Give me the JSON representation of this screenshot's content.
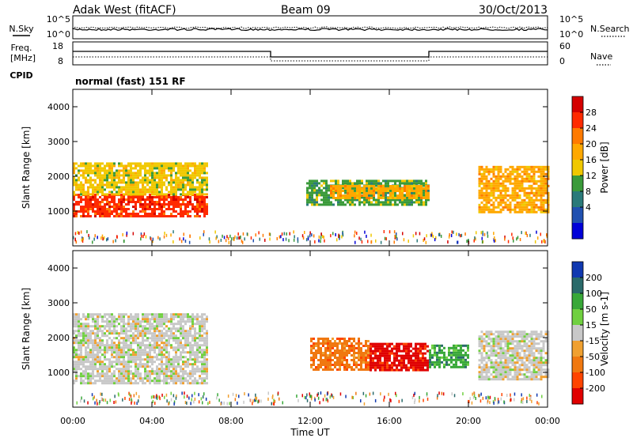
{
  "header": {
    "radar": "Adak West (fitACF)",
    "beam": "Beam 09",
    "date": "30/Oct/2013"
  },
  "noise_panel": {
    "left_label": "N.Sky",
    "right_label": "N.Search",
    "left_ticks": [
      "10^5",
      "10^0"
    ],
    "right_ticks": [
      "10^5",
      "10^0"
    ]
  },
  "freq_panel": {
    "left_label_line1": "Freq.",
    "left_label_line2": "[MHz]",
    "cpid_label": "CPID",
    "right_label": "Nave",
    "left_ticks": [
      "18",
      "8"
    ],
    "right_ticks": [
      "60",
      "0"
    ],
    "cpid_text": "normal (fast) 151 RF"
  },
  "legend_power": {
    "label": "Power [dB]",
    "ticks": [
      "28",
      "24",
      "20",
      "16",
      "12",
      "8",
      "4"
    ],
    "colors": [
      "#d40000",
      "#ff2a00",
      "#ff7a00",
      "#ffa800",
      "#f0c800",
      "#3a9a3a",
      "#2a7a7a",
      "#2050b0",
      "#0000d8"
    ]
  },
  "legend_velocity": {
    "label": "Velocity [m s-1]",
    "ticks": [
      "200",
      "100",
      "50",
      "15",
      "-15",
      "-50",
      "-100",
      "-200"
    ],
    "colors": [
      "#1038b0",
      "#2a6a6a",
      "#38a838",
      "#70d040",
      "#c8c8c8",
      "#f0a030",
      "#f07810",
      "#ff4400",
      "#e00000"
    ]
  },
  "chart_data": [
    {
      "type": "heatmap",
      "panel": "power",
      "ylabel": "Slant Range [km]",
      "xlabel": "",
      "ylim": [
        0,
        4500
      ],
      "xlim": [
        0,
        24
      ],
      "yticks": [
        "4000",
        "3000",
        "2000",
        "1000"
      ],
      "xticks": [
        "00:00",
        "04:00",
        "08:00",
        "12:00",
        "16:00",
        "20:00",
        "00:00"
      ],
      "regions": [
        {
          "t0": 0,
          "t1": 6.8,
          "r0": 850,
          "r1": 1500,
          "value_db": 26
        },
        {
          "t0": 0,
          "t1": 6.8,
          "r0": 1500,
          "r1": 2400,
          "value_db": 16
        },
        {
          "t0": 11.8,
          "t1": 18,
          "r0": 1150,
          "r1": 1900,
          "value_db": 12
        },
        {
          "t0": 13,
          "t1": 18,
          "r0": 1400,
          "r1": 1750,
          "value_db": 18
        },
        {
          "t0": 20.5,
          "t1": 24,
          "r0": 1000,
          "r1": 2300,
          "value_db": 20
        }
      ]
    },
    {
      "type": "heatmap",
      "panel": "velocity",
      "ylabel": "Slant Range [km]",
      "xlabel": "Time UT",
      "ylim": [
        0,
        4500
      ],
      "xlim": [
        0,
        24
      ],
      "yticks": [
        "4000",
        "3000",
        "2000",
        "1000"
      ],
      "xticks": [
        "00:00",
        "04:00",
        "08:00",
        "12:00",
        "16:00",
        "20:00",
        "00:00"
      ],
      "regions": [
        {
          "t0": 0,
          "t1": 6.8,
          "r0": 700,
          "r1": 2700,
          "value_ms": 0
        },
        {
          "t0": 12,
          "t1": 15,
          "r0": 1100,
          "r1": 2000,
          "value_ms": -100
        },
        {
          "t0": 15,
          "t1": 18,
          "r0": 1050,
          "r1": 1850,
          "value_ms": -200
        },
        {
          "t0": 18,
          "t1": 20,
          "r0": 1150,
          "r1": 1800,
          "value_ms": 50
        },
        {
          "t0": 20.5,
          "t1": 24,
          "r0": 800,
          "r1": 2200,
          "value_ms": 0
        }
      ]
    }
  ]
}
